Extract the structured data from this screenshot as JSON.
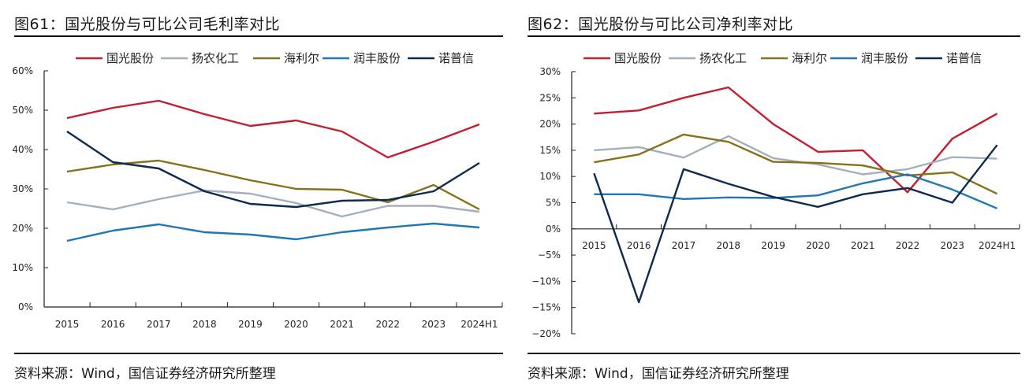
{
  "colors": {
    "国光股份": "#C21F30",
    "扬农化工": "#A3AFBD",
    "海利尔": "#85711A",
    "润丰股份": "#1F77B4",
    "诺普信": "#0E2A4E"
  },
  "panels": [
    {
      "title": "图61：国光股份与可比公司毛利率对比",
      "source": "资料来源：Wind，国信证券经济研究所整理"
    },
    {
      "title": "图62：国光股份与可比公司净利率对比",
      "source": "资料来源：Wind，国信证券经济研究所整理"
    }
  ],
  "chart_data": [
    {
      "type": "line",
      "title": "国光股份与可比公司毛利率对比",
      "xlabel": "",
      "ylabel": "",
      "categories": [
        "2015",
        "2016",
        "2017",
        "2018",
        "2019",
        "2020",
        "2021",
        "2022",
        "2023",
        "2024H1"
      ],
      "ylim": [
        0,
        60
      ],
      "yticks": [
        0,
        10,
        20,
        30,
        40,
        50,
        60
      ],
      "ytick_labels": [
        "0%",
        "10%",
        "20%",
        "30%",
        "40%",
        "50%",
        "60%"
      ],
      "grid": false,
      "legend": "top",
      "unit": "%",
      "series": [
        {
          "name": "国光股份",
          "values": [
            48.0,
            50.6,
            52.4,
            49.0,
            46.0,
            47.4,
            44.6,
            38.0,
            42.0,
            46.4
          ]
        },
        {
          "name": "扬农化工",
          "values": [
            26.6,
            24.8,
            27.4,
            29.6,
            28.8,
            26.4,
            23.0,
            25.7,
            25.7,
            24.2
          ]
        },
        {
          "name": "海利尔",
          "values": [
            34.4,
            36.2,
            37.2,
            34.8,
            32.2,
            30.0,
            29.8,
            26.6,
            31.0,
            24.8
          ]
        },
        {
          "name": "润丰股份",
          "values": [
            16.8,
            19.4,
            21.0,
            19.0,
            18.4,
            17.2,
            19.0,
            20.2,
            21.2,
            20.2
          ]
        },
        {
          "name": "诺普信",
          "values": [
            44.6,
            36.8,
            35.2,
            29.4,
            26.2,
            25.4,
            27.0,
            27.2,
            29.4,
            36.6
          ]
        }
      ]
    },
    {
      "type": "line",
      "title": "国光股份与可比公司净利率对比",
      "xlabel": "",
      "ylabel": "",
      "categories": [
        "2015",
        "2016",
        "2017",
        "2018",
        "2019",
        "2020",
        "2021",
        "2022",
        "2023",
        "2024H1"
      ],
      "ylim": [
        -20,
        30
      ],
      "yticks": [
        -20,
        -15,
        -10,
        -5,
        0,
        5,
        10,
        15,
        20,
        25,
        30
      ],
      "ytick_labels": [
        "−20%",
        "−15%",
        "−10%",
        "−5%",
        "0%",
        "5%",
        "10%",
        "15%",
        "20%",
        "25%",
        "30%"
      ],
      "grid": false,
      "legend": "top",
      "unit": "%",
      "series": [
        {
          "name": "国光股份",
          "values": [
            22.0,
            22.6,
            25.0,
            27.0,
            20.0,
            14.7,
            15.0,
            7.0,
            17.2,
            22.0
          ]
        },
        {
          "name": "扬农化工",
          "values": [
            15.0,
            15.6,
            13.6,
            17.7,
            13.5,
            12.3,
            10.4,
            11.4,
            13.7,
            13.4
          ]
        },
        {
          "name": "海利尔",
          "values": [
            12.7,
            14.2,
            18.0,
            16.6,
            12.8,
            12.6,
            12.1,
            10.2,
            10.8,
            6.7
          ]
        },
        {
          "name": "润丰股份",
          "values": [
            6.6,
            6.6,
            5.7,
            6.0,
            5.9,
            6.4,
            8.7,
            10.4,
            7.5,
            3.9
          ]
        },
        {
          "name": "诺普信",
          "values": [
            10.6,
            -14.0,
            11.4,
            8.6,
            6.1,
            4.2,
            6.6,
            7.8,
            5.0,
            16.0
          ]
        }
      ]
    }
  ]
}
